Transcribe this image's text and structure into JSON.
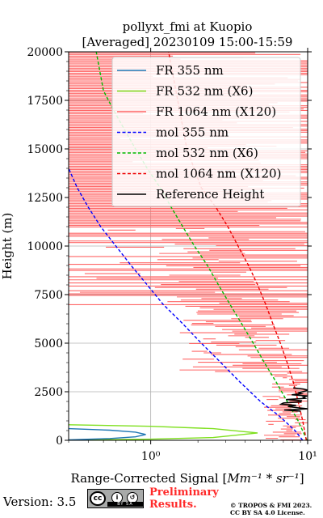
{
  "chart_data": {
    "type": "line",
    "title_line1": "pollyxt_fmi at Kuopio",
    "title_line2": "[Averaged] 20230109 15:00-15:59",
    "xlabel_prefix": "Range-Corrected Signal [",
    "xlabel_unit": "Mm⁻¹ * sr⁻¹",
    "xlabel_suffix": "]",
    "ylabel": "Height (m)",
    "xscale": "log",
    "xlim": [
      0.3,
      10
    ],
    "ylim": [
      0,
      20000
    ],
    "grid": true,
    "legend_position": "top-right",
    "xticks": [
      {
        "value": 1,
        "label": "10⁰"
      },
      {
        "value": 10,
        "label": "10¹"
      }
    ],
    "yticks": [
      0,
      2500,
      5000,
      7500,
      10000,
      12500,
      15000,
      17500,
      20000
    ],
    "yticklabels": [
      "0",
      "2500",
      "5000",
      "7500",
      "10000",
      "12500",
      "15000",
      "17500",
      "20000"
    ],
    "series": [
      {
        "name": "FR 355 nm",
        "color": "#1f77b4",
        "style": "solid",
        "x": [
          0.3,
          0.55,
          0.8,
          0.93,
          0.8,
          0.55,
          0.3
        ],
        "y": [
          20,
          90,
          180,
          300,
          420,
          520,
          600
        ]
      },
      {
        "name": "FR 532 nm (X6)",
        "color": "#7fe01f",
        "style": "solid",
        "x": [
          0.3,
          1.0,
          2.5,
          4.8,
          2.5,
          1.0,
          0.3
        ],
        "y": [
          10,
          60,
          140,
          380,
          600,
          720,
          800
        ]
      },
      {
        "name": "FR 1064 nm (X120)",
        "color": "#ff6666",
        "style": "solid-noisy"
      },
      {
        "name": "mol 355 nm",
        "color": "#0000ff",
        "style": "dashed",
        "x": [
          9.3,
          8.3,
          6.6,
          5.0,
          3.7,
          2.8,
          2.1,
          1.6,
          1.2,
          0.95,
          0.75,
          0.6,
          0.48,
          0.4,
          0.34,
          0.3
        ],
        "y": [
          0,
          500,
          1250,
          2000,
          3000,
          4000,
          5000,
          6000,
          7000,
          8000,
          9000,
          10000,
          11000,
          12000,
          13000,
          14000
        ]
      },
      {
        "name": "mol 532 nm (X6)",
        "color": "#00bb00",
        "style": "dashed",
        "x": [
          9.9,
          8.7,
          7.4,
          6.3,
          5.3,
          4.5,
          3.8,
          3.2,
          2.7,
          2.3,
          1.9,
          1.6,
          1.35,
          1.15,
          0.95,
          0.8,
          0.68,
          0.58,
          0.5,
          0.45
        ],
        "y": [
          0,
          1000,
          2000,
          3000,
          4000,
          5000,
          6000,
          7000,
          8000,
          9000,
          10000,
          11000,
          12000,
          13000,
          14000,
          15000,
          16000,
          17000,
          18000,
          20000
        ]
      },
      {
        "name": "mol 1064 nm (X120)",
        "color": "#ee0000",
        "style": "dashed",
        "x": [
          9.8,
          9.3,
          8.7,
          8.1,
          7.4,
          6.7,
          6.0,
          5.4,
          4.8,
          4.2,
          3.6,
          3.1,
          2.6,
          2.1,
          1.7,
          1.3
        ],
        "y": [
          0,
          1000,
          2000,
          3000,
          4000,
          5000,
          6000,
          7000,
          8000,
          9000,
          10000,
          11000,
          12000,
          13000,
          15000,
          20000
        ]
      },
      {
        "name": "Reference Height",
        "color": "#000000",
        "style": "solid",
        "range": [
          1500,
          2700
        ]
      }
    ]
  },
  "footer": {
    "version": "Version: 3.5",
    "cc_label": "cc",
    "cc_strip": "BY  SA",
    "preliminary_line1": "Preliminary",
    "preliminary_line2": "Results.",
    "copyright_line1": "© TROPOS & FMI 2023.",
    "copyright_line2": "CC BY SA 4.0 License."
  }
}
